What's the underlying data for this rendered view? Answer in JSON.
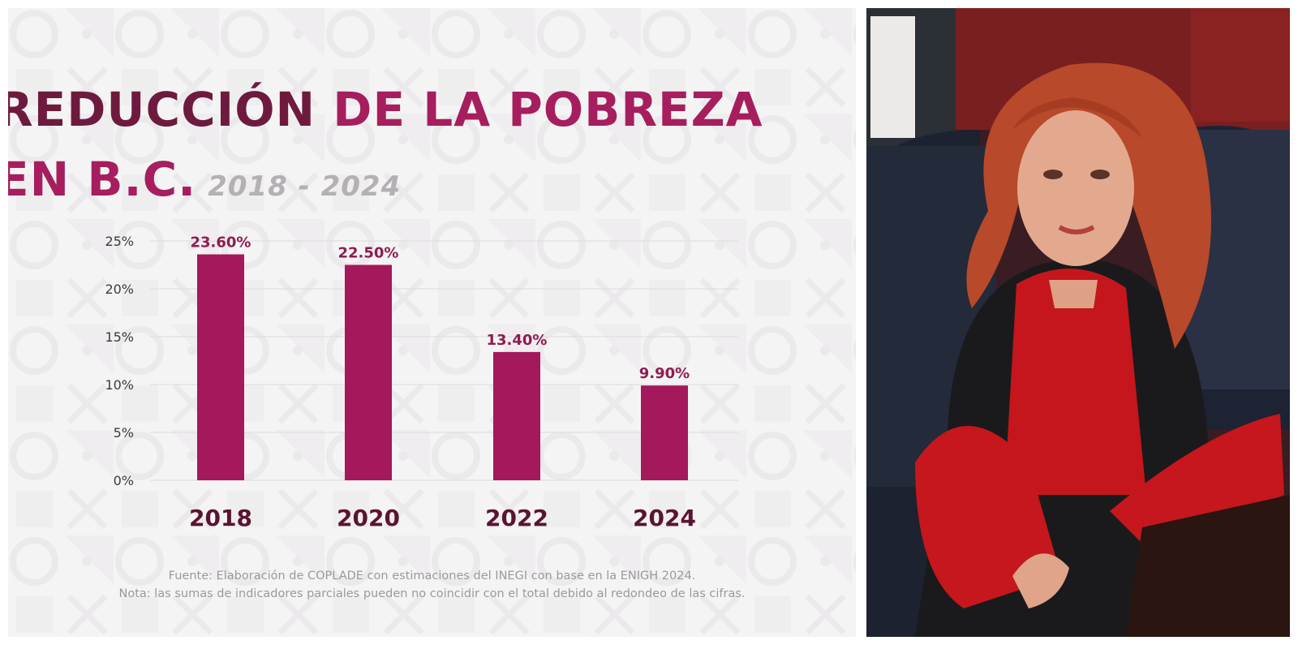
{
  "infographic": {
    "title_part1": "REDUCCIÓN",
    "title_part2": "DE LA POBREZA",
    "title_part3": "EN B.C.",
    "years_range": "2018 - 2024",
    "source_note": "Fuente: Elaboración de COPLADE con estimaciones del INEGI con base en la ENIGH 2024.",
    "rounding_note": "Nota: las sumas de indicadores parciales pueden no coincidir con el total debido al redondeo de las cifras.",
    "colors": {
      "bar": "#a3195b",
      "title_dark": "#6e1a3e",
      "title_bright": "#a61e5d"
    }
  },
  "chart_data": {
    "type": "bar",
    "categories": [
      "2018",
      "2020",
      "2022",
      "2024"
    ],
    "values": [
      23.6,
      22.5,
      13.4,
      9.9
    ],
    "value_labels": [
      "23.60%",
      "22.50%",
      "13.40%",
      "9.90%"
    ],
    "yticks": [
      0,
      5,
      10,
      15,
      20,
      25
    ],
    "ytick_labels": [
      "0%",
      "5%",
      "10%",
      "15%",
      "20%",
      "25%"
    ],
    "ylim": [
      0,
      25
    ],
    "grid": true,
    "bar_color": "#a3195b"
  },
  "photo": {
    "subject": "woman-portrait-icon"
  }
}
